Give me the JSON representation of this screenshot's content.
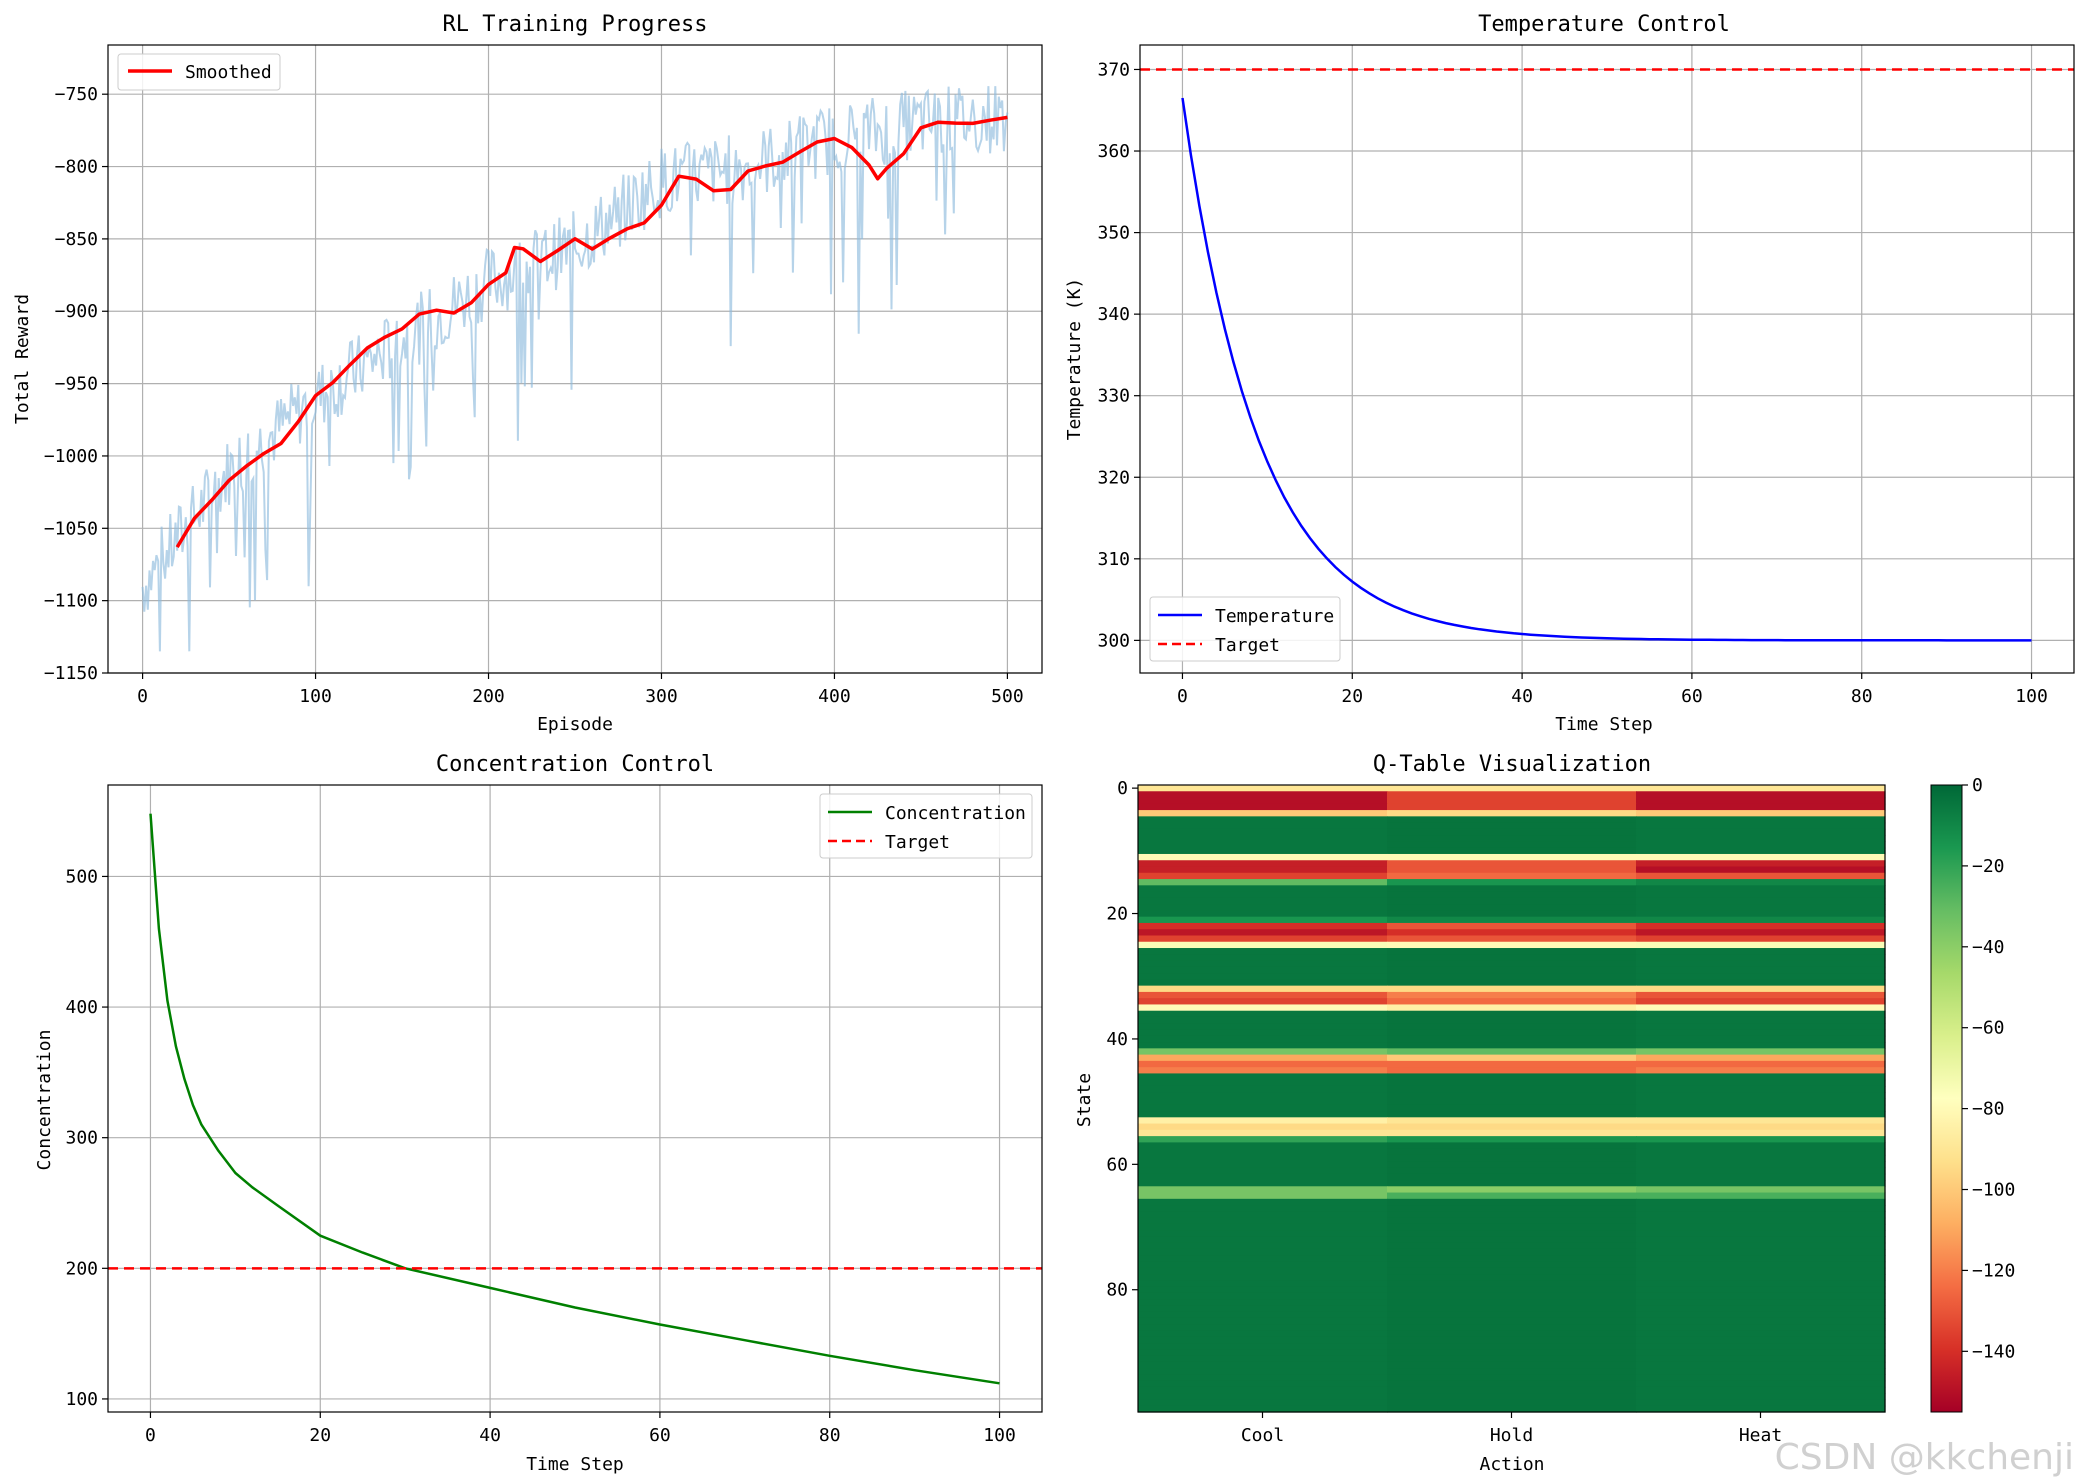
{
  "watermark": "CSDN @kkchenji",
  "colors": {
    "reward_raw": "#8fbcdd",
    "reward_smooth": "#ff0000",
    "temp": "#0000ff",
    "conc": "#008000",
    "target": "#ff0000",
    "grid": "#b0b0b0"
  },
  "chart_data": [
    {
      "id": "training",
      "type": "line",
      "title": "RL Training Progress",
      "xlabel": "Episode",
      "ylabel": "Total Reward",
      "xlim": [
        -20,
        520
      ],
      "ylim": [
        -1150,
        -716
      ],
      "xticks": [
        0,
        100,
        200,
        300,
        400,
        500
      ],
      "yticks": [
        -1150,
        -1100,
        -1050,
        -1000,
        -950,
        -900,
        -850,
        -800,
        -750
      ],
      "legend": {
        "position": "upper-left",
        "entries": [
          "Smoothed"
        ]
      },
      "smoothed_window_start": 20,
      "series": [
        {
          "name": "Raw Reward",
          "color": "#8fbcdd",
          "x_range": [
            0,
            500
          ],
          "trend": [
            [
              0,
              -1090
            ],
            [
              50,
              -1010
            ],
            [
              100,
              -960
            ],
            [
              150,
              -920
            ],
            [
              200,
              -880
            ],
            [
              250,
              -855
            ],
            [
              300,
              -810
            ],
            [
              350,
              -800
            ],
            [
              400,
              -780
            ],
            [
              450,
              -770
            ],
            [
              500,
              -765
            ]
          ]
        },
        {
          "name": "Smoothed",
          "color": "#ff0000",
          "points": [
            [
              20,
              -1063
            ],
            [
              30,
              -1045
            ],
            [
              40,
              -1030
            ],
            [
              50,
              -1015
            ],
            [
              60,
              -1008
            ],
            [
              70,
              -1000
            ],
            [
              80,
              -990
            ],
            [
              90,
              -975
            ],
            [
              100,
              -960
            ],
            [
              110,
              -950
            ],
            [
              120,
              -935
            ],
            [
              130,
              -925
            ],
            [
              140,
              -920
            ],
            [
              150,
              -912
            ],
            [
              160,
              -900
            ],
            [
              170,
              -900
            ],
            [
              180,
              -903
            ],
            [
              190,
              -893
            ],
            [
              200,
              -880
            ],
            [
              210,
              -875
            ],
            [
              215,
              -857
            ],
            [
              220,
              -855
            ],
            [
              230,
              -865
            ],
            [
              240,
              -860
            ],
            [
              250,
              -850
            ],
            [
              260,
              -855
            ],
            [
              270,
              -850
            ],
            [
              280,
              -845
            ],
            [
              290,
              -838
            ],
            [
              300,
              -825
            ],
            [
              310,
              -808
            ],
            [
              320,
              -810
            ],
            [
              330,
              -815
            ],
            [
              340,
              -815
            ],
            [
              350,
              -805
            ],
            [
              360,
              -800
            ],
            [
              370,
              -795
            ],
            [
              380,
              -790
            ],
            [
              390,
              -785
            ],
            [
              400,
              -780
            ],
            [
              410,
              -785
            ],
            [
              420,
              -800
            ],
            [
              425,
              -810
            ],
            [
              430,
              -800
            ],
            [
              440,
              -790
            ],
            [
              450,
              -775
            ],
            [
              460,
              -770
            ],
            [
              470,
              -768
            ],
            [
              480,
              -770
            ],
            [
              490,
              -770
            ],
            [
              500,
              -766
            ]
          ]
        }
      ]
    },
    {
      "id": "temperature",
      "type": "line",
      "title": "Temperature Control",
      "xlabel": "Time Step",
      "ylabel": "Temperature (K)",
      "xlim": [
        -5,
        105
      ],
      "ylim": [
        296,
        373
      ],
      "xticks": [
        0,
        20,
        40,
        60,
        80,
        100
      ],
      "yticks": [
        300,
        310,
        320,
        330,
        340,
        350,
        360,
        370
      ],
      "legend": {
        "position": "lower-left",
        "entries": [
          "Temperature",
          "Target"
        ]
      },
      "series": [
        {
          "name": "Temperature",
          "color": "#0000ff",
          "model": "300 + 66.5*exp(-t/9)",
          "x_range": [
            0,
            100
          ]
        },
        {
          "name": "Target",
          "color": "#ff0000",
          "style": "dashed",
          "y": 370
        }
      ]
    },
    {
      "id": "concentration",
      "type": "line",
      "title": "Concentration Control",
      "xlabel": "Time Step",
      "ylabel": "Concentration",
      "xlim": [
        -5,
        105
      ],
      "ylim": [
        90,
        570
      ],
      "xticks": [
        0,
        20,
        40,
        60,
        80,
        100
      ],
      "yticks": [
        100,
        200,
        300,
        400,
        500
      ],
      "legend": {
        "position": "upper-right",
        "entries": [
          "Concentration",
          "Target"
        ]
      },
      "series": [
        {
          "name": "Concentration",
          "color": "#008000",
          "x_range": [
            0,
            100
          ],
          "points": [
            [
              0,
              548
            ],
            [
              1,
              460
            ],
            [
              2,
              405
            ],
            [
              3,
              370
            ],
            [
              4,
              345
            ],
            [
              5,
              325
            ],
            [
              6,
              310
            ],
            [
              8,
              290
            ],
            [
              10,
              273
            ],
            [
              12,
              262
            ],
            [
              15,
              248
            ],
            [
              20,
              225
            ],
            [
              25,
              212
            ],
            [
              30,
              200
            ],
            [
              40,
              185
            ],
            [
              50,
              170
            ],
            [
              60,
              157
            ],
            [
              70,
              145
            ],
            [
              80,
              133
            ],
            [
              90,
              122
            ],
            [
              100,
              112
            ]
          ]
        },
        {
          "name": "Target",
          "color": "#ff0000",
          "style": "dashed",
          "y": 200
        }
      ]
    },
    {
      "id": "qtable",
      "type": "heatmap",
      "title": "Q-Table Visualization",
      "xlabel": "Action",
      "ylabel": "State",
      "xticklabels": [
        "Cool",
        "Hold",
        "Heat"
      ],
      "yticks": [
        0,
        20,
        40,
        60,
        80
      ],
      "n_states": 100,
      "colorbar": {
        "ticks": [
          0,
          -20,
          -40,
          -60,
          -80,
          -100,
          -120,
          -140
        ],
        "min": -155,
        "max": 0,
        "colormap": "RdYlGn"
      },
      "highlight_rows": [
        {
          "state": 0,
          "values": [
            -90,
            -90,
            -90
          ]
        },
        {
          "state": 1,
          "values": [
            -150,
            -135,
            -150
          ]
        },
        {
          "state": 2,
          "values": [
            -150,
            -135,
            -150
          ]
        },
        {
          "state": 3,
          "values": [
            -150,
            -135,
            -150
          ]
        },
        {
          "state": 4,
          "values": [
            -100,
            -95,
            -100
          ]
        },
        {
          "state": 11,
          "values": [
            -80,
            -80,
            -80
          ]
        },
        {
          "state": 12,
          "values": [
            -145,
            -130,
            -145
          ]
        },
        {
          "state": 13,
          "values": [
            -145,
            -130,
            -150
          ]
        },
        {
          "state": 14,
          "values": [
            -135,
            -125,
            -130
          ]
        },
        {
          "state": 15,
          "values": [
            -30,
            -15,
            -10
          ]
        },
        {
          "state": 21,
          "values": [
            -15,
            -10,
            -10
          ]
        },
        {
          "state": 22,
          "values": [
            -140,
            -130,
            -140
          ]
        },
        {
          "state": 23,
          "values": [
            -148,
            -140,
            -148
          ]
        },
        {
          "state": 24,
          "values": [
            -135,
            -130,
            -135
          ]
        },
        {
          "state": 25,
          "values": [
            -75,
            -80,
            -75
          ]
        },
        {
          "state": 32,
          "values": [
            -95,
            -95,
            -95
          ]
        },
        {
          "state": 33,
          "values": [
            -130,
            -120,
            -130
          ]
        },
        {
          "state": 34,
          "values": [
            -135,
            -125,
            -135
          ]
        },
        {
          "state": 35,
          "values": [
            -80,
            -85,
            -80
          ]
        },
        {
          "state": 42,
          "values": [
            -35,
            -30,
            -35
          ]
        },
        {
          "state": 43,
          "values": [
            -110,
            -100,
            -110
          ]
        },
        {
          "state": 44,
          "values": [
            -125,
            -125,
            -125
          ]
        },
        {
          "state": 45,
          "values": [
            -120,
            -125,
            -120
          ]
        },
        {
          "state": 53,
          "values": [
            -85,
            -90,
            -90
          ]
        },
        {
          "state": 54,
          "values": [
            -95,
            -95,
            -95
          ]
        },
        {
          "state": 55,
          "values": [
            -90,
            -90,
            -90
          ]
        },
        {
          "state": 56,
          "values": [
            -20,
            -15,
            -15
          ]
        },
        {
          "state": 64,
          "values": [
            -35,
            -40,
            -35
          ]
        },
        {
          "state": 65,
          "values": [
            -35,
            -25,
            -25
          ]
        }
      ],
      "default_value": -5
    }
  ]
}
